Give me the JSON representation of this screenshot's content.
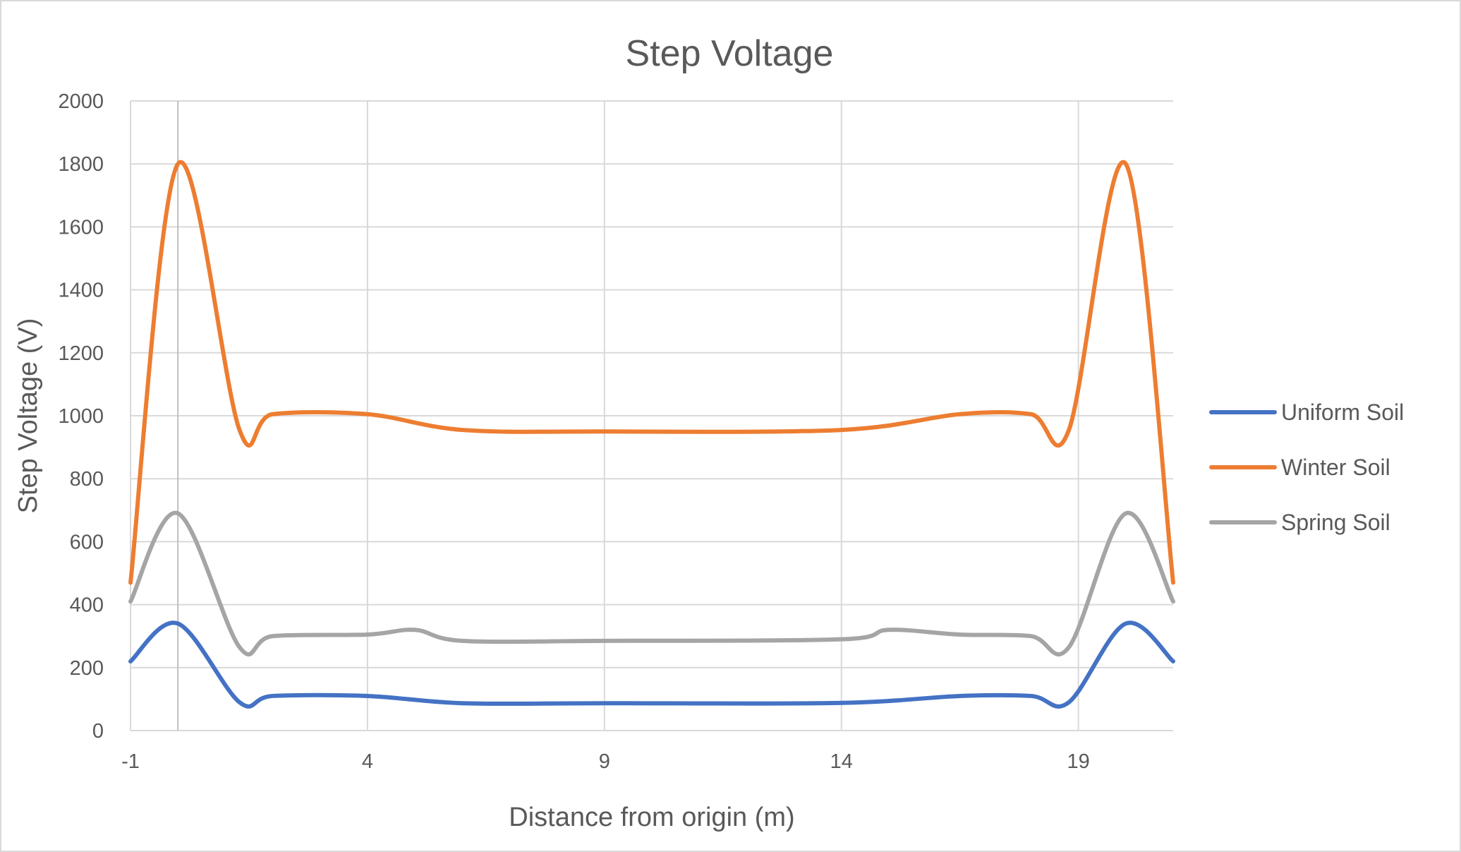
{
  "chart_data": {
    "type": "line",
    "title": "Step Voltage",
    "xlabel": "Distance from origin (m)",
    "ylabel": "Step Voltage (V)",
    "xlim": [
      -1,
      21
    ],
    "ylim": [
      0,
      2000
    ],
    "x_ticks": [
      "-1",
      "4",
      "9",
      "14",
      "19"
    ],
    "x_tick_values": [
      -1,
      4,
      9,
      14,
      19
    ],
    "y_ticks": [
      "0",
      "200",
      "400",
      "600",
      "800",
      "1000",
      "1200",
      "1400",
      "1600",
      "1800",
      "2000"
    ],
    "y_tick_values": [
      0,
      200,
      400,
      600,
      800,
      1000,
      1200,
      1400,
      1600,
      1800,
      2000
    ],
    "grid": true,
    "smooth": true,
    "legend_position": "right",
    "series": [
      {
        "name": "Uniform Soil",
        "color": "#4472C4",
        "x": [
          -1,
          0,
          1.3,
          2,
          4,
          6,
          9,
          14,
          16.5,
          18,
          18.8,
          20,
          21
        ],
        "y": [
          220,
          340,
          90,
          110,
          110,
          87,
          87,
          88,
          110,
          110,
          90,
          340,
          220
        ]
      },
      {
        "name": "Winter Soil",
        "color": "#ED7D31",
        "x": [
          -1,
          0,
          1.3,
          2,
          4,
          6,
          9,
          14,
          16.5,
          18,
          18.8,
          20,
          21
        ],
        "y": [
          470,
          1800,
          955,
          1005,
          1005,
          955,
          950,
          955,
          1005,
          1005,
          955,
          1800,
          470
        ]
      },
      {
        "name": "Spring Soil",
        "color": "#A5A5A5",
        "x": [
          -1,
          0,
          1.3,
          2,
          4,
          5,
          6,
          9,
          14,
          15,
          16.5,
          18,
          18.8,
          20,
          21
        ],
        "y": [
          410,
          690,
          265,
          300,
          305,
          320,
          285,
          285,
          290,
          320,
          305,
          300,
          265,
          690,
          410
        ]
      }
    ]
  }
}
